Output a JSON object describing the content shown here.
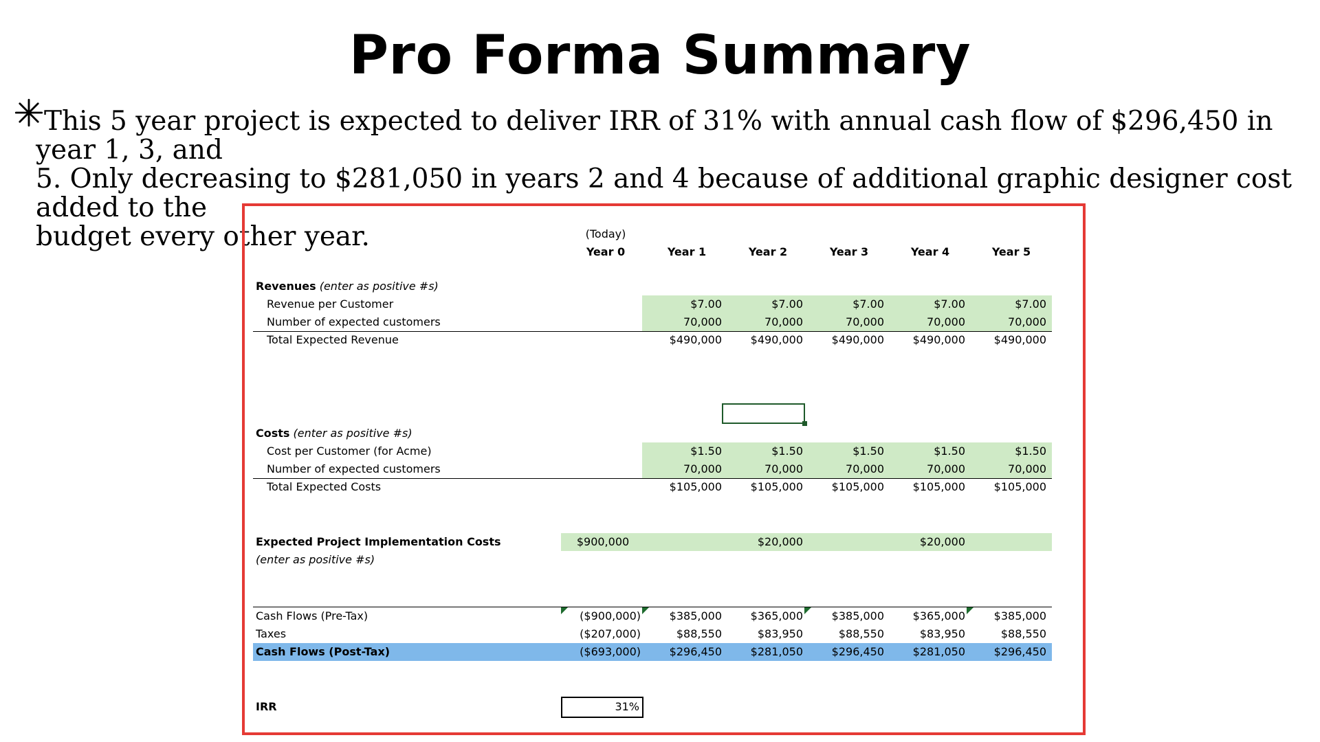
{
  "title": "Pro Forma Summary",
  "summary": {
    "line1": "This 5 year project is expected to deliver IRR of 31% with annual cash flow of $296,450 in year 1, 3, and",
    "line2": "5. Only decreasing to $281,050 in years 2 and 4 because of additional graphic designer cost added to the",
    "line3": "budget every other year."
  },
  "colors": {
    "frame_border": "#e53a35",
    "input_fill": "#cfeac6",
    "highlight_row": "#7fb8ea"
  },
  "headers": {
    "today": "(Today)",
    "years": [
      "Year 0",
      "Year 1",
      "Year 2",
      "Year 3",
      "Year 4",
      "Year 5"
    ]
  },
  "revenues": {
    "section_label": "Revenues",
    "section_note": "(enter as positive #s)",
    "rows": [
      {
        "label": "Revenue per Customer",
        "values": [
          "$7.00",
          "$7.00",
          "$7.00",
          "$7.00",
          "$7.00"
        ]
      },
      {
        "label": "Number of expected customers",
        "values": [
          "70,000",
          "70,000",
          "70,000",
          "70,000",
          "70,000"
        ]
      },
      {
        "label": "Total Expected Revenue",
        "values": [
          "$490,000",
          "$490,000",
          "$490,000",
          "$490,000",
          "$490,000"
        ]
      }
    ]
  },
  "costs": {
    "section_label": "Costs",
    "section_note": "(enter as positive #s)",
    "rows": [
      {
        "label": "Cost per Customer (for Acme)",
        "values": [
          "$1.50",
          "$1.50",
          "$1.50",
          "$1.50",
          "$1.50"
        ]
      },
      {
        "label": "Number of expected customers",
        "values": [
          "70,000",
          "70,000",
          "70,000",
          "70,000",
          "70,000"
        ]
      },
      {
        "label": "Total Expected Costs",
        "values": [
          "$105,000",
          "$105,000",
          "$105,000",
          "$105,000",
          "$105,000"
        ]
      }
    ]
  },
  "implementation": {
    "label": "Expected Project Implementation Costs",
    "note": "(enter as positive #s)",
    "values": [
      "$900,000",
      "",
      "$20,000",
      "",
      "$20,000",
      ""
    ]
  },
  "cashflows": {
    "pretax": {
      "label": "Cash Flows (Pre-Tax)",
      "values": [
        "($900,000)",
        "$385,000",
        "$365,000",
        "$385,000",
        "$365,000",
        "$385,000"
      ]
    },
    "taxes": {
      "label": "Taxes",
      "values": [
        "($207,000)",
        "$88,550",
        "$83,950",
        "$88,550",
        "$83,950",
        "$88,550"
      ]
    },
    "posttax": {
      "label": "Cash Flows (Post-Tax)",
      "values": [
        "($693,000)",
        "$296,450",
        "$281,050",
        "$296,450",
        "$281,050",
        "$296,450"
      ]
    }
  },
  "irr": {
    "label": "IRR",
    "value": "31%"
  }
}
